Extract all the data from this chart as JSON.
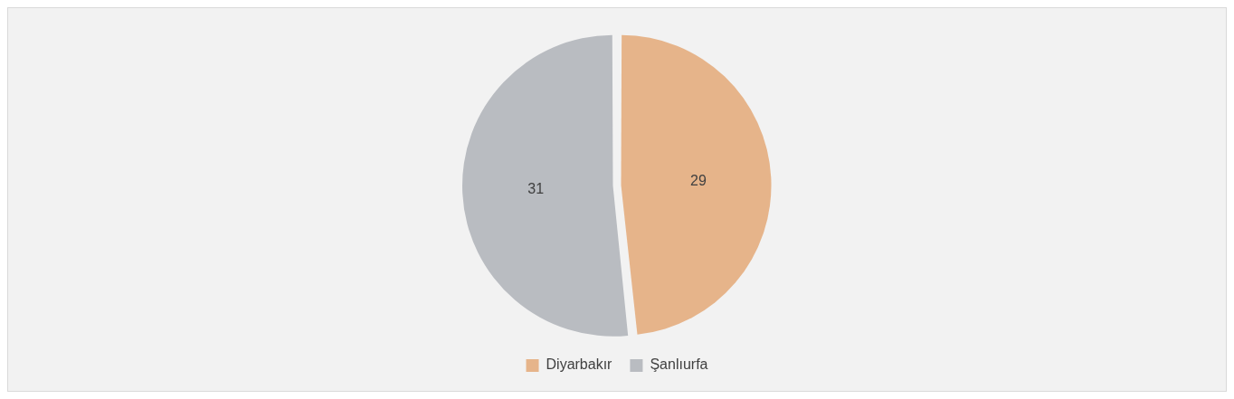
{
  "chart_data": {
    "type": "pie",
    "categories": [
      "Diyarbakır",
      "Şanlıurfa"
    ],
    "values": [
      29,
      31
    ],
    "colors": [
      "#e6b48a",
      "#b9bcc1"
    ],
    "data_labels": true,
    "legend": "bottom"
  }
}
